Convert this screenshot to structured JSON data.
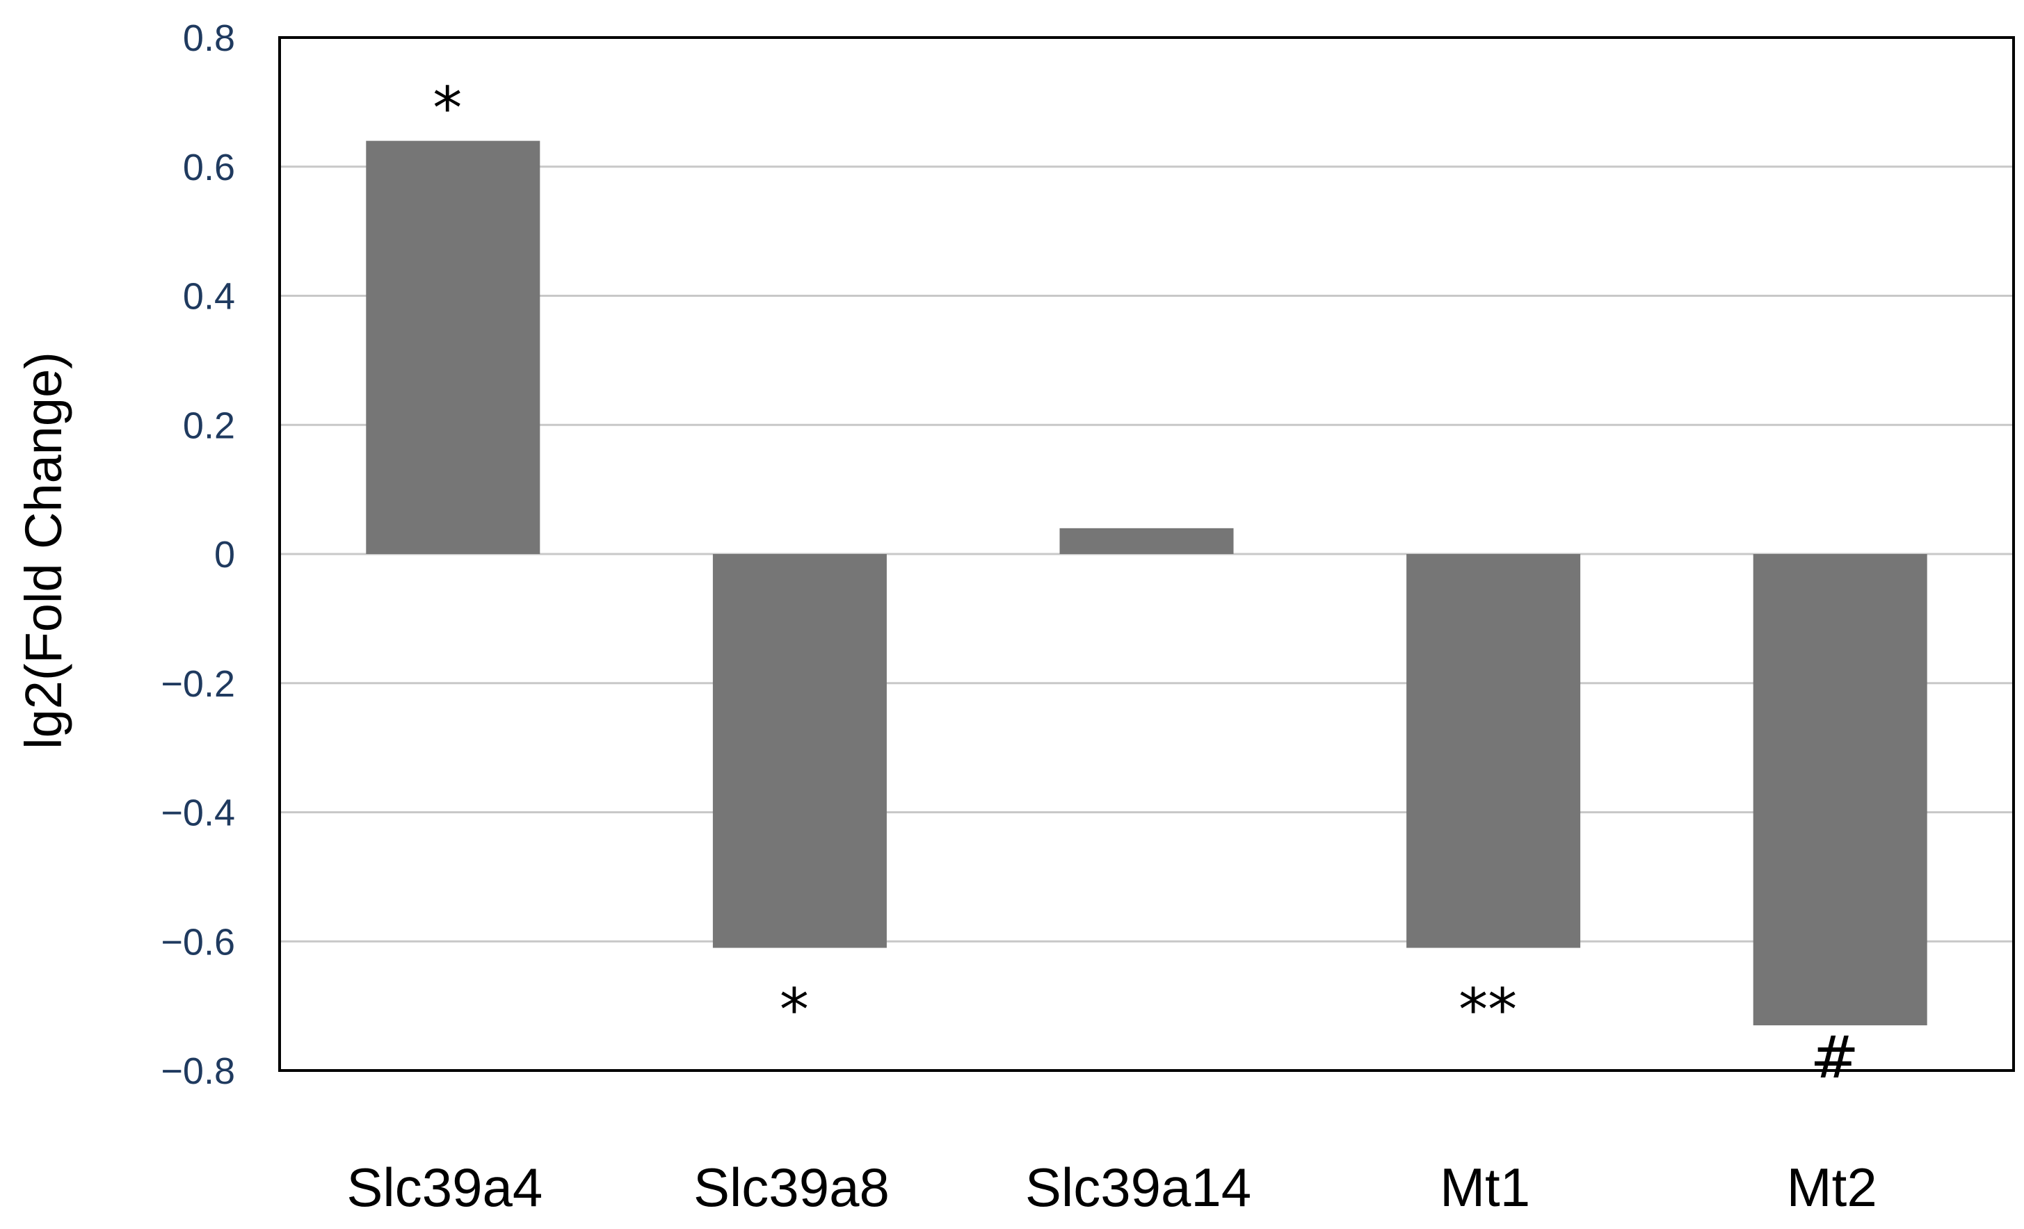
{
  "chart_data": {
    "type": "bar",
    "title": "",
    "xlabel": "",
    "ylabel": "lg2(Fold Change)",
    "categories": [
      "Slc39a4",
      "Slc39a8",
      "Slc39a14",
      "Mt1",
      "Mt2"
    ],
    "values": [
      0.64,
      -0.61,
      0.04,
      -0.61,
      -0.73
    ],
    "annotations": [
      "*",
      "*",
      "",
      "**",
      "#"
    ],
    "ylim": [
      -0.8,
      0.8
    ],
    "yticks": [
      0.8,
      0.6,
      0.4,
      0.2,
      0,
      -0.2,
      -0.4,
      -0.6,
      -0.8
    ],
    "ytick_labels": [
      "0.8",
      "0.6",
      "0.4",
      "0.2",
      "0",
      "−0.2",
      "−0.4",
      "−0.6",
      "−0.8"
    ],
    "grid": true,
    "legend": "none",
    "colors": {
      "bar": "#767676",
      "grid": "#c8c8c8",
      "axis": "#000000",
      "tick_text": "#1f3a5f"
    }
  }
}
